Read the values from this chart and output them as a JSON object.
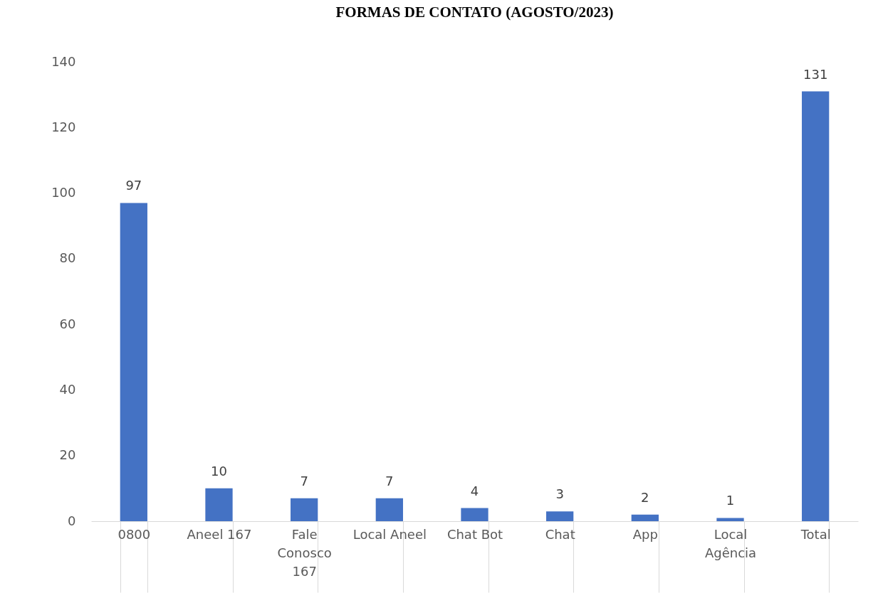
{
  "chart_data": {
    "type": "bar",
    "title": "FORMAS DE CONTATO (AGOSTO/2023)",
    "categories": [
      "0800",
      "Aneel 167",
      "Fale Conosco 167",
      "Local Aneel",
      "Chat Bot",
      "Chat",
      "App",
      "Local Agência",
      "Total"
    ],
    "values": [
      97,
      10,
      7,
      7,
      4,
      3,
      2,
      1,
      131
    ],
    "color": "#4472c4",
    "ylim": [
      0,
      140
    ],
    "yticks": [
      0,
      20,
      40,
      60,
      80,
      100,
      120,
      140
    ],
    "data_labels": true
  }
}
